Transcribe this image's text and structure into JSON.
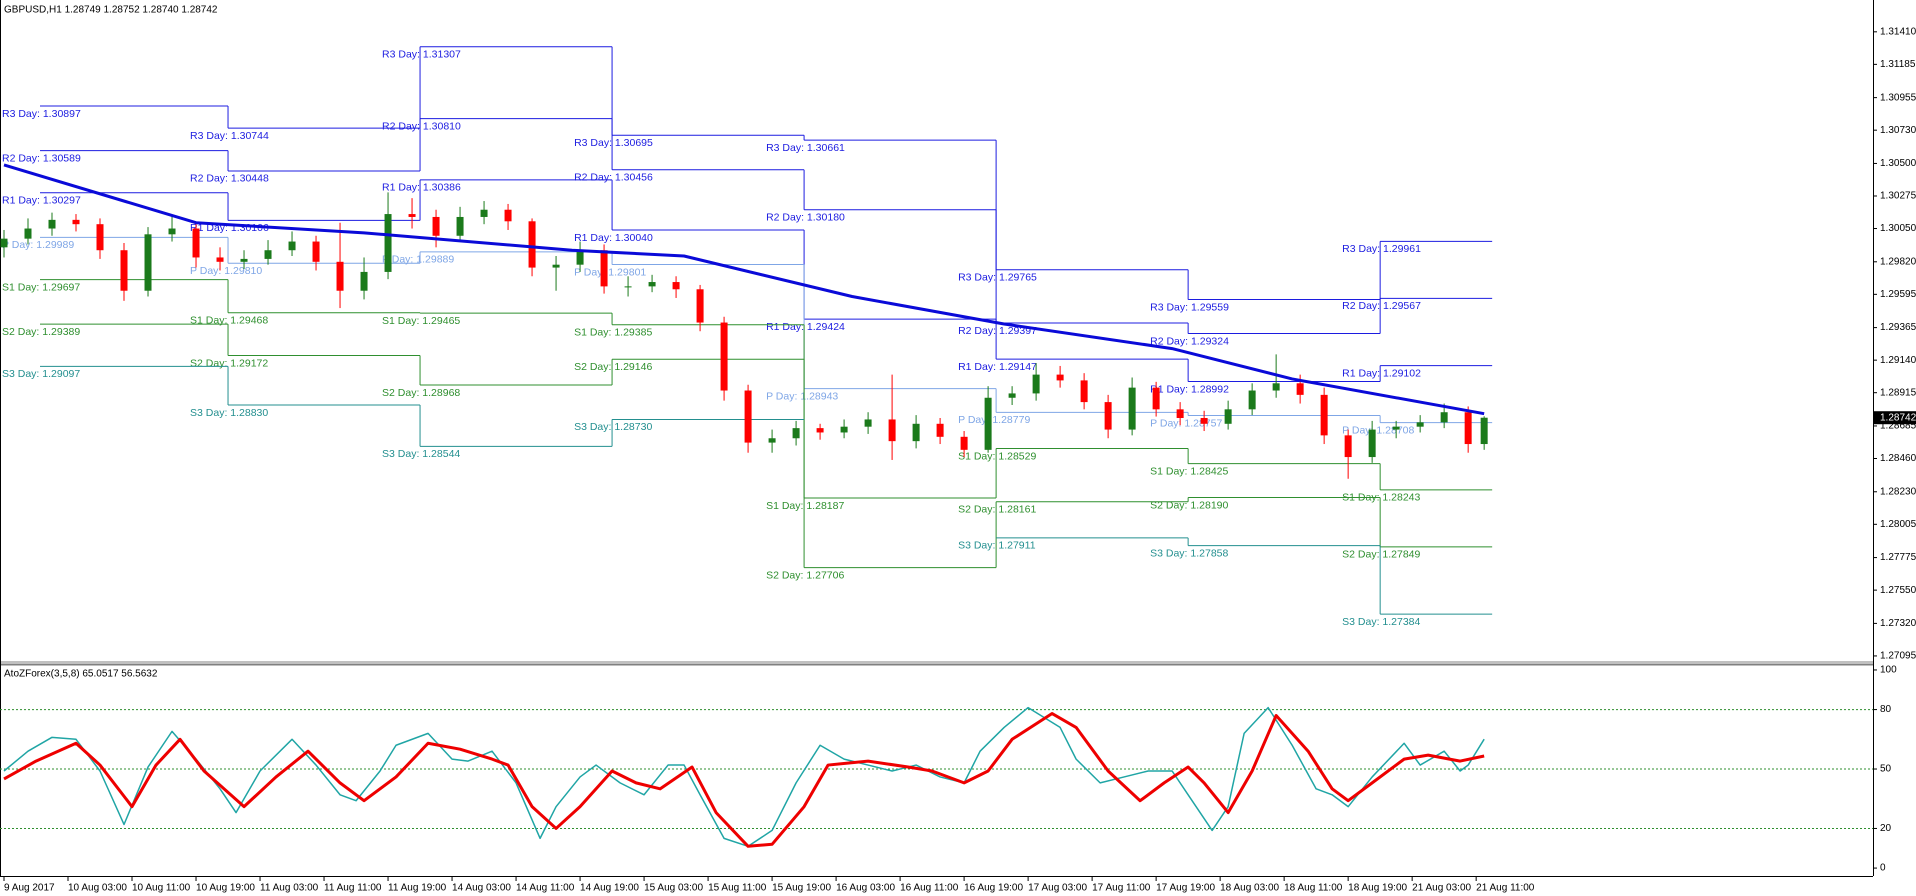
{
  "chart_data": [
    {
      "type": "candlestick",
      "title": "GBPUSD,H1  1.28749 1.28752 1.28740 1.28742",
      "xlim": [
        -0.5,
        233.6
      ],
      "ylim": [
        1.2706,
        1.3163
      ],
      "yticks": [
        {
          "value": 1.3141,
          "label": "1.31410"
        },
        1.31185,
        1.30955,
        {
          "value": 1.3073,
          "label": "1.30730"
        },
        {
          "value": 1.305,
          "label": "1.30500"
        },
        1.30275,
        {
          "value": 1.3005,
          "label": "1.30050"
        },
        {
          "value": 1.2982,
          "label": "1.29820"
        },
        1.29595,
        1.29365,
        {
          "value": 1.2914,
          "label": "1.29140"
        },
        1.28915,
        1.28685,
        {
          "value": 1.2846,
          "label": "1.28460"
        },
        {
          "value": 1.2823,
          "label": "1.28230"
        },
        1.28005,
        1.27775,
        {
          "value": 1.2755,
          "label": "1.27550"
        },
        {
          "value": 1.2732,
          "label": "1.27320"
        },
        1.27095
      ],
      "colors": {
        "up": "#1b7a1b",
        "down": "#ff0000"
      },
      "x": [
        0,
        3,
        6,
        9,
        12,
        15,
        18,
        21,
        24,
        27,
        30,
        33,
        36,
        39,
        42,
        45,
        48,
        51,
        54,
        57,
        60,
        63,
        66,
        69,
        72,
        75,
        78,
        81,
        84,
        87,
        90,
        93,
        96,
        99,
        102,
        105,
        108,
        111,
        114,
        117,
        120,
        123,
        126,
        129,
        132,
        135,
        138,
        141,
        144,
        147,
        150,
        153,
        156,
        159,
        162,
        165,
        168,
        171,
        174,
        177,
        180,
        183,
        185
      ],
      "ohlc": [
        [
          1.2992,
          1.3004,
          1.2985,
          1.2998
        ],
        [
          1.2998,
          1.3012,
          1.2994,
          1.3005
        ],
        [
          1.3005,
          1.3016,
          1.3,
          1.3011
        ],
        [
          1.3011,
          1.3015,
          1.3003,
          1.3008
        ],
        [
          1.3008,
          1.3012,
          1.2984,
          1.299
        ],
        [
          1.299,
          1.2995,
          1.2955,
          1.2962
        ],
        [
          1.2962,
          1.3006,
          1.2958,
          1.3001
        ],
        [
          1.3001,
          1.3014,
          1.2996,
          1.3005
        ],
        [
          1.3005,
          1.3009,
          1.2978,
          1.2985
        ],
        [
          1.2985,
          1.2992,
          1.2976,
          1.2982
        ],
        [
          1.2982,
          1.299,
          1.2977,
          1.2984
        ],
        [
          1.2984,
          1.2997,
          1.298,
          1.299
        ],
        [
          1.299,
          1.3003,
          1.2986,
          1.2996
        ],
        [
          1.2996,
          1.3,
          1.2976,
          1.2982
        ],
        [
          1.2982,
          1.3009,
          1.295,
          1.2962
        ],
        [
          1.2962,
          1.2985,
          1.2956,
          1.2975
        ],
        [
          1.2975,
          1.303,
          1.297,
          1.3015
        ],
        [
          1.3015,
          1.3026,
          1.3005,
          1.3013
        ],
        [
          1.3013,
          1.3018,
          1.2992,
          1.3
        ],
        [
          1.3,
          1.302,
          1.2996,
          1.3013
        ],
        [
          1.3013,
          1.3024,
          1.3008,
          1.3018
        ],
        [
          1.3018,
          1.3022,
          1.3004,
          1.301
        ],
        [
          1.301,
          1.3012,
          1.2972,
          1.2978
        ],
        [
          1.2978,
          1.2986,
          1.2962,
          1.298
        ],
        [
          1.298,
          1.2996,
          1.2975,
          1.299
        ],
        [
          1.299,
          1.2994,
          1.296,
          1.2965
        ],
        [
          1.2965,
          1.2972,
          1.2958,
          1.2965
        ],
        [
          1.2965,
          1.2973,
          1.2961,
          1.2968
        ],
        [
          1.2968,
          1.2972,
          1.2957,
          1.2963
        ],
        [
          1.2963,
          1.2966,
          1.2934,
          1.294
        ],
        [
          1.294,
          1.2944,
          1.2886,
          1.2893
        ],
        [
          1.2893,
          1.2897,
          1.285,
          1.2857
        ],
        [
          1.2857,
          1.2866,
          1.285,
          1.286
        ],
        [
          1.286,
          1.2872,
          1.2855,
          1.2867
        ],
        [
          1.2867,
          1.287,
          1.2859,
          1.2864
        ],
        [
          1.2864,
          1.2873,
          1.286,
          1.2868
        ],
        [
          1.2868,
          1.2878,
          1.2863,
          1.2873
        ],
        [
          1.2873,
          1.2904,
          1.2845,
          1.2858
        ],
        [
          1.2858,
          1.2876,
          1.2853,
          1.287
        ],
        [
          1.287,
          1.2874,
          1.2856,
          1.2861
        ],
        [
          1.2861,
          1.2865,
          1.2847,
          1.2852
        ],
        [
          1.2852,
          1.2896,
          1.285,
          1.2888
        ],
        [
          1.2888,
          1.2896,
          1.2883,
          1.2891
        ],
        [
          1.2891,
          1.2912,
          1.2886,
          1.2904
        ],
        [
          1.2904,
          1.291,
          1.2895,
          1.29
        ],
        [
          1.29,
          1.2905,
          1.288,
          1.2885
        ],
        [
          1.2885,
          1.289,
          1.286,
          1.2866
        ],
        [
          1.2866,
          1.2902,
          1.2862,
          1.2895
        ],
        [
          1.2895,
          1.2899,
          1.2875,
          1.288
        ],
        [
          1.288,
          1.2885,
          1.2869,
          1.2874
        ],
        [
          1.2874,
          1.2879,
          1.2865,
          1.287
        ],
        [
          1.287,
          1.2886,
          1.2866,
          1.288
        ],
        [
          1.288,
          1.2898,
          1.2876,
          1.2893
        ],
        [
          1.2893,
          1.2918,
          1.2888,
          1.2898
        ],
        [
          1.2898,
          1.2904,
          1.2884,
          1.289
        ],
        [
          1.289,
          1.2895,
          1.2856,
          1.2862
        ],
        [
          1.2862,
          1.2866,
          1.2832,
          1.2847
        ],
        [
          1.2847,
          1.2872,
          1.2843,
          1.2866
        ],
        [
          1.2866,
          1.2872,
          1.286,
          1.2868
        ],
        [
          1.2868,
          1.2876,
          1.2864,
          1.2871
        ],
        [
          1.2871,
          1.2884,
          1.2867,
          1.2878
        ],
        [
          1.2878,
          1.2882,
          1.285,
          1.2856
        ],
        [
          1.2856,
          1.28752,
          1.2852,
          1.28742
        ]
      ],
      "lines": [
        {
          "color": "#0a0ad8",
          "x": [
            0,
            24,
            45,
            71,
            85,
            106,
            125,
            146,
            161,
            185
          ],
          "values": [
            1.3049,
            1.3009,
            1.3002,
            1.299,
            1.2986,
            1.2958,
            1.2939,
            1.2922,
            1.2901,
            1.2877
          ]
        }
      ],
      "pivots": {
        "segment_x": [
          4.5,
          28,
          52,
          76,
          100,
          124,
          148,
          172,
          186
        ],
        "series": [
          {
            "color": "#1c1ce0",
            "values": [
              1.30897,
              1.30744,
              1.31307,
              1.30695,
              1.30661,
              1.29765,
              1.29559,
              1.29961
            ],
            "value_labels": [
              "R3 Day: 1.30897",
              "R3 Day: 1.30744",
              "R3 Day: 1.31307",
              "R3 Day: 1.30695",
              "R3 Day: 1.30661",
              "R3 Day: 1.29765",
              "R3 Day: 1.29559",
              "R3 Day: 1.29961"
            ]
          },
          {
            "color": "#1c1ce0",
            "values": [
              1.30589,
              1.30448,
              1.3081,
              1.30456,
              1.3018,
              1.29397,
              1.29324,
              1.29567
            ],
            "value_labels": [
              "R2 Day: 1.30589",
              "R2 Day: 1.30448",
              "R2 Day: 1.30810",
              "R2 Day: 1.30456",
              "R2 Day: 1.30180",
              "R2 Day: 1.29397",
              "R2 Day: 1.29324",
              "R2 Day: 1.29567"
            ]
          },
          {
            "color": "#1c1ce0",
            "values": [
              1.30297,
              1.30106,
              1.30386,
              1.3004,
              1.29424,
              1.29147,
              1.28992,
              1.29102
            ],
            "value_labels": [
              "R1 Day: 1.30297",
              "R1 Day: 1.30106",
              "R1 Day: 1.30386",
              "R1 Day: 1.30040",
              "R1 Day: 1.29424",
              "R1 Day: 1.29147",
              "R1 Day: 1.28992",
              "R1 Day: 1.29102"
            ]
          },
          {
            "color": "#7fa6e6",
            "values": [
              1.29989,
              1.2981,
              1.29889,
              1.29801,
              1.28943,
              1.28779,
              1.28757,
              1.28708
            ],
            "value_labels": [
              "P Day: 1.29989",
              "P Day: 1.29810",
              "P Day: 1.29889",
              "P Day: 1.29801",
              "P Day: 1.28943",
              "P Day: 1.28779",
              "P Day: 1.28757",
              "P Day: 1.28708"
            ]
          },
          {
            "color": "#2f8f2f",
            "values": [
              1.29697,
              1.29468,
              1.29465,
              1.29385,
              1.28187,
              1.28529,
              1.28425,
              1.28243
            ],
            "value_labels": [
              "S1 Day: 1.29697",
              "S1 Day: 1.29468",
              "S1 Day: 1.29465",
              "S1 Day: 1.29385",
              "S1 Day: 1.28187",
              "S1 Day: 1.28529",
              "S1 Day: 1.28425",
              "S1 Day: 1.28243"
            ]
          },
          {
            "color": "#2f8f2f",
            "values": [
              1.29389,
              1.29172,
              1.28968,
              1.29146,
              1.27706,
              1.28161,
              1.2819,
              1.27849
            ],
            "value_labels": [
              "S2 Day: 1.29389",
              "S2 Day: 1.29172",
              "S2 Day: 1.28968",
              "S2 Day: 1.29146",
              "S2 Day: 1.27706",
              "S2 Day: 1.28161",
              "S2 Day: 1.28190",
              "S2 Day: 1.27849"
            ]
          },
          {
            "color": "#238f8f",
            "values": [
              1.29097,
              1.2883,
              1.28544,
              1.2873,
              null,
              1.27911,
              1.27858,
              1.27384
            ],
            "value_labels": [
              "S3 Day: 1.29097",
              "S3 Day: 1.28830",
              "S3 Day: 1.28544",
              "S3 Day: 1.28730",
              null,
              "S3 Day: 1.27911",
              "S3 Day: 1.27858",
              "S3 Day: 1.27384"
            ]
          }
        ]
      }
    },
    {
      "type": "line",
      "title": "AtoZForex(3,5,8) 65.0517 56.5632",
      "xlim": [
        -0.5,
        233.6
      ],
      "ylim": [
        -4,
        102
      ],
      "yticks": [
        100,
        80,
        50,
        20,
        0
      ],
      "levels": [
        80,
        50,
        20
      ],
      "level_color": "#2f8f2f",
      "xticks": [
        {
          "value": 0,
          "label": "9 Aug 2017"
        },
        {
          "value": 8,
          "label": "10 Aug 03:00"
        },
        {
          "value": 16,
          "label": "10 Aug 11:00"
        },
        {
          "value": 24,
          "label": "10 Aug 19:00"
        },
        {
          "value": 32,
          "label": "11 Aug 03:00"
        },
        {
          "value": 40,
          "label": "11 Aug 11:00"
        },
        {
          "value": 48,
          "label": "11 Aug 19:00"
        },
        {
          "value": 56,
          "label": "14 Aug 03:00"
        },
        {
          "value": 64,
          "label": "14 Aug 11:00"
        },
        {
          "value": 72,
          "label": "14 Aug 19:00"
        },
        {
          "value": 80,
          "label": "15 Aug 03:00"
        },
        {
          "value": 88,
          "label": "15 Aug 11:00"
        },
        {
          "value": 96,
          "label": "15 Aug 19:00"
        },
        {
          "value": 104,
          "label": "16 Aug 03:00"
        },
        {
          "value": 112,
          "label": "16 Aug 11:00"
        },
        {
          "value": 120,
          "label": "16 Aug 19:00"
        },
        {
          "value": 128,
          "label": "17 Aug 03:00"
        },
        {
          "value": 136,
          "label": "17 Aug 11:00"
        },
        {
          "value": 144,
          "label": "17 Aug 19:00"
        },
        {
          "value": 152,
          "label": "18 Aug 03:00"
        },
        {
          "value": 160,
          "label": "18 Aug 11:00"
        },
        {
          "value": 168,
          "label": "18 Aug 19:00"
        },
        {
          "value": 176,
          "label": "21 Aug 03:00"
        },
        {
          "value": 184,
          "label": "21 Aug 11:00"
        }
      ],
      "series": [
        {
          "color": "#20a5a5",
          "width": 1.5,
          "x": [
            0,
            3,
            6,
            9,
            12,
            15,
            18,
            21,
            24,
            27,
            29,
            32,
            36,
            39,
            42,
            44,
            47,
            49,
            53,
            56,
            58,
            61,
            64,
            67,
            69,
            72,
            74,
            77,
            80,
            83,
            85,
            87,
            90,
            93,
            96,
            99,
            102,
            105,
            108,
            111,
            114,
            117,
            120,
            122,
            125,
            128,
            132,
            134,
            137,
            140,
            143,
            146,
            148,
            151,
            153,
            155,
            158,
            161,
            164,
            166,
            168,
            171,
            175,
            177,
            180,
            182,
            183,
            185
          ],
          "values": [
            49,
            59,
            66,
            65,
            49,
            22,
            51,
            69,
            55,
            40,
            28,
            49,
            65,
            52,
            37,
            34,
            49,
            62,
            68,
            55,
            54,
            59,
            43,
            15,
            31,
            46,
            52,
            43,
            37,
            52,
            52,
            37,
            15,
            11,
            19,
            43,
            62,
            55,
            52,
            49,
            52,
            46,
            43,
            59,
            71,
            81,
            71,
            55,
            43,
            46,
            49,
            49,
            37,
            19,
            31,
            68,
            81,
            62,
            40,
            37,
            31,
            46,
            63,
            52,
            59,
            49,
            52,
            65.0517
          ]
        },
        {
          "color": "#ee0000",
          "width": 3,
          "x": [
            0,
            4,
            9,
            12,
            16,
            19,
            22,
            25,
            30,
            34,
            38,
            42,
            45,
            49,
            53,
            57,
            61,
            63,
            66,
            69,
            72,
            76,
            79,
            82,
            86,
            89,
            93,
            96,
            100,
            103,
            108,
            113,
            116,
            120,
            123,
            126,
            131,
            134,
            138,
            142,
            145,
            148,
            150,
            153,
            156,
            159,
            163,
            166,
            168,
            171,
            175,
            178,
            182,
            185
          ],
          "values": [
            45,
            54,
            63,
            52,
            31,
            52,
            65,
            49,
            31,
            46,
            59,
            43,
            34,
            46,
            63,
            60,
            55,
            52,
            31,
            20,
            31,
            49,
            43,
            40,
            51,
            28,
            11,
            12,
            31,
            52,
            54,
            51,
            49,
            43,
            49,
            65,
            78,
            71,
            49,
            34,
            43,
            51,
            43,
            28,
            49,
            77,
            59,
            40,
            34,
            43,
            55,
            57,
            54,
            56.5632
          ]
        }
      ]
    }
  ]
}
